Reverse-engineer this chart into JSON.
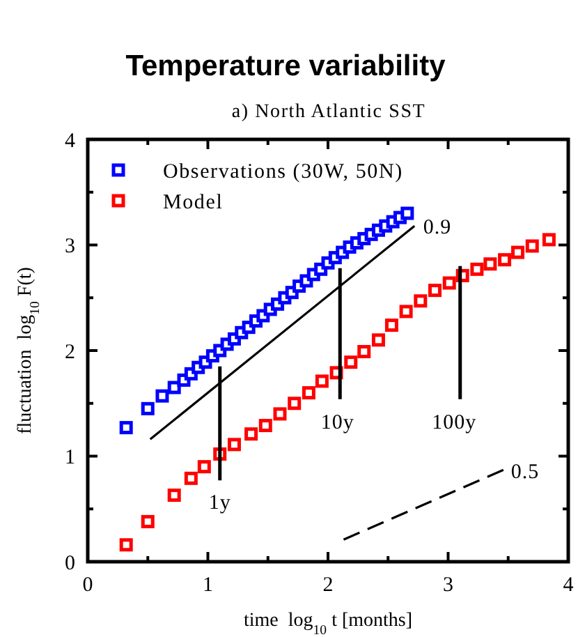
{
  "chart_data": {
    "type": "scatter",
    "title": "Temperature variability",
    "subtitle": "a) North Atlantic SST",
    "xlabel": "time  log$_{10}$ t [months]",
    "ylabel": "fluctuation  log$_{10}$ F(t)",
    "xlim": [
      0,
      4
    ],
    "ylim": [
      0,
      4
    ],
    "xticks": [
      0,
      {
        "value": 0.5,
        "label": null
      },
      1,
      {
        "value": 1.5,
        "label": null
      },
      2,
      {
        "value": 2.5,
        "label": null
      },
      3,
      {
        "value": 3.5,
        "label": null
      },
      4
    ],
    "yticks": [
      0,
      {
        "value": 0.5,
        "label": null
      },
      1,
      {
        "value": 1.5,
        "label": null
      },
      2,
      {
        "value": 2.5,
        "label": null
      },
      3,
      {
        "value": 3.5,
        "label": null
      },
      4
    ],
    "legend": "top left",
    "grid": false,
    "series": [
      {
        "name": "Observations (30W, 50N)",
        "color": "#0000ff",
        "marker": "square",
        "x": [
          0.32,
          0.5,
          0.62,
          0.72,
          0.8,
          0.86,
          0.92,
          0.98,
          1.04,
          1.1,
          1.16,
          1.22,
          1.28,
          1.34,
          1.4,
          1.46,
          1.52,
          1.58,
          1.64,
          1.7,
          1.76,
          1.82,
          1.88,
          1.94,
          2.0,
          2.06,
          2.12,
          2.18,
          2.24,
          2.3,
          2.36,
          2.42,
          2.48,
          2.54,
          2.6,
          2.66
        ],
        "values": [
          1.27,
          1.45,
          1.57,
          1.65,
          1.72,
          1.78,
          1.84,
          1.89,
          1.95,
          2.0,
          2.06,
          2.11,
          2.17,
          2.22,
          2.28,
          2.33,
          2.39,
          2.44,
          2.5,
          2.55,
          2.61,
          2.66,
          2.72,
          2.77,
          2.83,
          2.88,
          2.93,
          2.98,
          3.02,
          3.06,
          3.1,
          3.14,
          3.18,
          3.22,
          3.26,
          3.3
        ]
      },
      {
        "name": "Model",
        "color": "#ff0000",
        "marker": "square",
        "x": [
          0.32,
          0.5,
          0.72,
          0.86,
          0.97,
          1.1,
          1.22,
          1.36,
          1.48,
          1.6,
          1.72,
          1.84,
          1.95,
          2.07,
          2.19,
          2.3,
          2.42,
          2.53,
          2.65,
          2.77,
          2.89,
          3.01,
          3.12,
          3.24,
          3.35,
          3.47,
          3.58,
          3.7,
          3.84
        ],
        "values": [
          0.16,
          0.38,
          0.63,
          0.79,
          0.9,
          1.02,
          1.11,
          1.21,
          1.29,
          1.4,
          1.5,
          1.6,
          1.71,
          1.79,
          1.89,
          1.99,
          2.1,
          2.24,
          2.37,
          2.47,
          2.57,
          2.64,
          2.71,
          2.77,
          2.82,
          2.86,
          2.93,
          2.99,
          3.05
        ]
      },
      {
        "color": "#000000",
        "type": "line",
        "line_style": "solid",
        "x": [
          0.52,
          2.72
        ],
        "values": [
          1.16,
          3.18
        ]
      },
      {
        "color": "#000000",
        "type": "line",
        "line_style": "dashed",
        "x": [
          2.13,
          3.46
        ],
        "values": [
          0.21,
          0.87
        ]
      },
      {
        "color": "#000000",
        "type": "line",
        "line_style": "solid",
        "x": [
          1.1,
          1.1
        ],
        "values": [
          0.77,
          1.85
        ]
      },
      {
        "color": "#000000",
        "type": "line",
        "line_style": "solid",
        "x": [
          2.1,
          2.1
        ],
        "values": [
          1.54,
          2.78
        ]
      },
      {
        "color": "#000000",
        "type": "line",
        "line_style": "solid",
        "x": [
          3.1,
          3.1
        ],
        "values": [
          1.54,
          2.8
        ]
      }
    ],
    "annotations": [
      "0.9",
      "0.5",
      "1y",
      "10y",
      "100y"
    ]
  }
}
